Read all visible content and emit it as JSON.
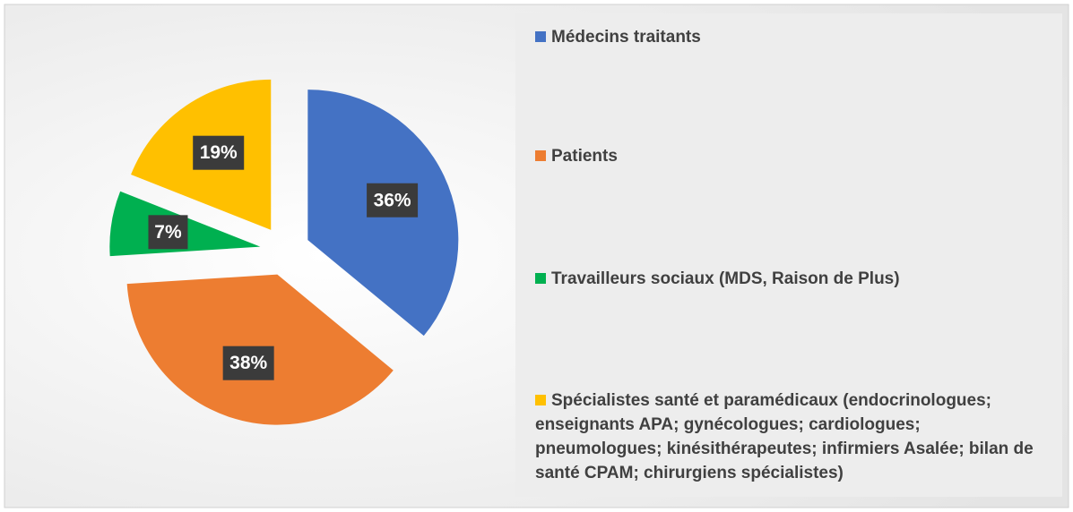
{
  "chart_data": {
    "type": "pie",
    "categories": [
      "Médecins traitants",
      "Patients",
      "Travailleurs sociaux (MDS, Raison de Plus)",
      "Spécialistes santé et paramédicaux (endocrinologues; enseignants APA; gynécologues; cardiologues; pneumologues; kinésithérapeutes; infirmiers Asalée; bilan de santé CPAM; chirurgiens spécialistes)"
    ],
    "values": [
      36,
      38,
      7,
      19
    ],
    "value_labels": [
      "36%",
      "38%",
      "7%",
      "19%"
    ],
    "colors": [
      "#4472c4",
      "#ed7d31",
      "#00b050",
      "#ffc000"
    ],
    "legend": "right"
  }
}
